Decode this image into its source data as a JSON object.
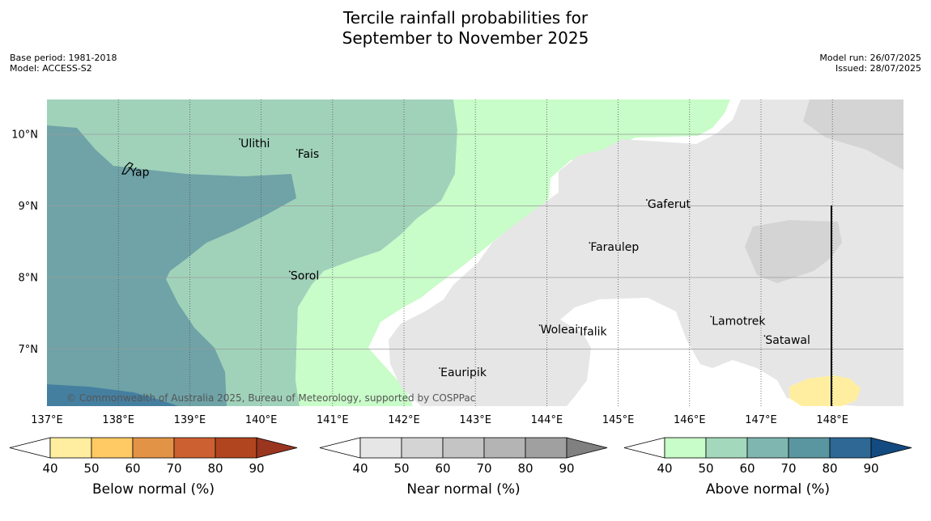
{
  "title": {
    "line1": "Tercile rainfall probabilities for",
    "line2": "September to November 2025"
  },
  "meta": {
    "base_period": "Base period: 1981-2018",
    "model": "Model: ACCESS-S2",
    "model_run": "Model run: 26/07/2025",
    "issued": "Issued: 28/07/2025"
  },
  "map": {
    "lon_labels": [
      "137°E",
      "138°E",
      "139°E",
      "140°E",
      "141°E",
      "142°E",
      "143°E",
      "144°E",
      "145°E",
      "146°E",
      "147°E",
      "148°E"
    ],
    "lat_labels": [
      "10°N",
      "9°N",
      "8°N",
      "7°N"
    ],
    "places": [
      {
        "name": "Yap",
        "lon": 138.15,
        "lat": 9.5
      },
      {
        "name": "Ulithi",
        "lon": 139.7,
        "lat": 9.9
      },
      {
        "name": "Fais",
        "lon": 140.5,
        "lat": 9.75
      },
      {
        "name": "Gaferut",
        "lon": 145.4,
        "lat": 9.05
      },
      {
        "name": "Faraulep",
        "lon": 144.6,
        "lat": 8.45
      },
      {
        "name": "Sorol",
        "lon": 140.4,
        "lat": 8.05
      },
      {
        "name": "Woleai",
        "lon": 143.9,
        "lat": 7.3
      },
      {
        "name": "Ifalik",
        "lon": 144.45,
        "lat": 7.27
      },
      {
        "name": "Lamotrek",
        "lon": 146.3,
        "lat": 7.42
      },
      {
        "name": "Satawal",
        "lon": 147.05,
        "lat": 7.15
      },
      {
        "name": "Eauripik",
        "lon": 142.5,
        "lat": 6.7
      }
    ],
    "copyright": "© Commonwealth of Australia 2025, Bureau of Meteorology, supported by COSPPac"
  },
  "legends": [
    {
      "label": "Below normal (%)",
      "ticks": [
        "40",
        "50",
        "60",
        "70",
        "80",
        "90"
      ],
      "colors": [
        "#ffffff",
        "#ffeea0",
        "#ffc964",
        "#e39345",
        "#cd6030",
        "#b0451f",
        "#9a3520"
      ]
    },
    {
      "label": "Near normal (%)",
      "ticks": [
        "40",
        "50",
        "60",
        "70",
        "80",
        "90"
      ],
      "colors": [
        "#ffffff",
        "#e6e6e6",
        "#d4d4d4",
        "#c4c4c4",
        "#b4b4b4",
        "#a0a0a0",
        "#808080"
      ]
    },
    {
      "label": "Above normal (%)",
      "ticks": [
        "40",
        "50",
        "60",
        "70",
        "80",
        "90"
      ],
      "colors": [
        "#ffffff",
        "#c8fcc8",
        "#a4d8bc",
        "#7fb6b0",
        "#5a96a0",
        "#2f6895",
        "#134a80"
      ]
    }
  ]
}
